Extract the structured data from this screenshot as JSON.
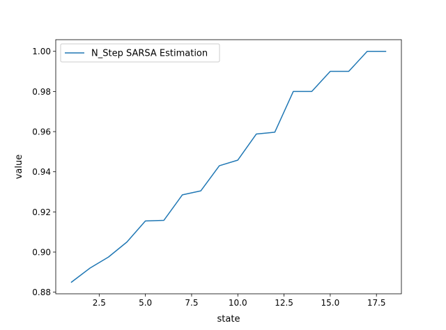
{
  "chart_data": {
    "type": "line",
    "title": "",
    "xlabel": "state",
    "ylabel": "value",
    "xlim": [
      0.15,
      18.85
    ],
    "ylim": [
      0.8792,
      1.0058
    ],
    "xticks": [
      2.5,
      5.0,
      7.5,
      10.0,
      12.5,
      15.0,
      17.5
    ],
    "xtick_labels": [
      "2.5",
      "5.0",
      "7.5",
      "10.0",
      "12.5",
      "15.0",
      "17.5"
    ],
    "yticks": [
      0.88,
      0.9,
      0.92,
      0.94,
      0.96,
      0.98,
      1.0
    ],
    "ytick_labels": [
      "0.88",
      "0.90",
      "0.92",
      "0.94",
      "0.96",
      "0.98",
      "1.00"
    ],
    "grid": false,
    "legend_position": "upper left",
    "series": [
      {
        "name": "N_Step SARSA Estimation",
        "color": "#1f77b4",
        "x": [
          1,
          2,
          3,
          4,
          5,
          6,
          7,
          8,
          9,
          10,
          11,
          12,
          13,
          14,
          15,
          16,
          17,
          18
        ],
        "y": [
          0.885,
          0.892,
          0.8975,
          0.905,
          0.9155,
          0.9158,
          0.9285,
          0.9305,
          0.943,
          0.9458,
          0.9588,
          0.9597,
          0.98,
          0.98,
          0.99,
          0.99,
          1.0,
          1.0
        ]
      }
    ]
  }
}
